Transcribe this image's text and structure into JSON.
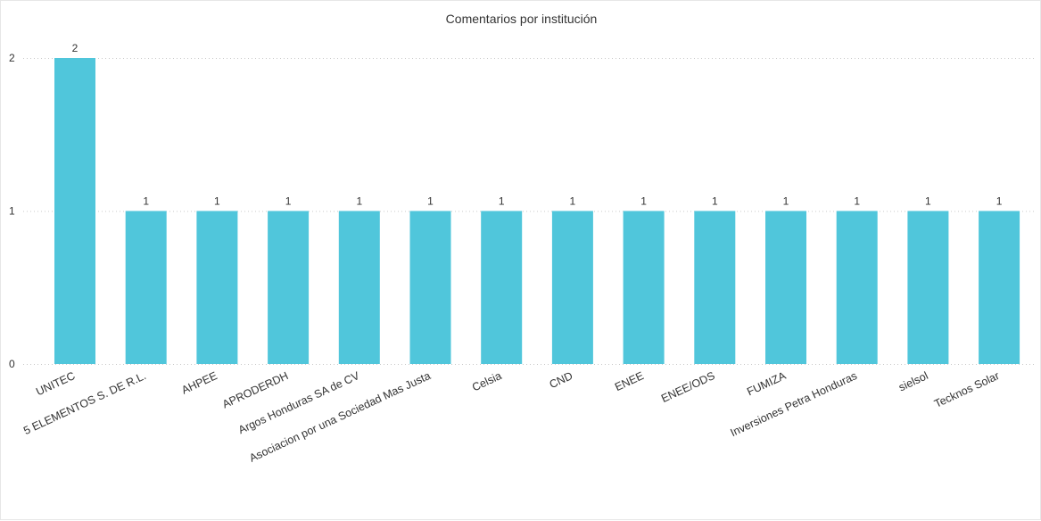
{
  "chart_data": {
    "type": "bar",
    "title": "Comentarios por institución",
    "categories": [
      "UNITEC",
      "5 ELEMENTOS S. DE R.L.",
      "AHPEE",
      "APRODERDH",
      "Argos Honduras SA de CV",
      "Asociacion por una Sociedad Mas Justa",
      "Celsia",
      "CND",
      "ENEE",
      "ENEE/ODS",
      "FUMIZA",
      "Inversiones Petra Honduras",
      "sielsol",
      "Tecknos Solar"
    ],
    "values": [
      2,
      1,
      1,
      1,
      1,
      1,
      1,
      1,
      1,
      1,
      1,
      1,
      1,
      1
    ],
    "data_labels": [
      "2",
      "1",
      "1",
      "1",
      "1",
      "1",
      "1",
      "1",
      "1",
      "1",
      "1",
      "1",
      "1",
      "1"
    ],
    "yticks": [
      0,
      1,
      2
    ],
    "ylim": [
      0,
      2
    ],
    "xlabel": "",
    "ylabel": "",
    "grid": "horizontal-dotted",
    "legend": "none",
    "bar_color": "#50c6db",
    "grid_color": "#c8c8c8",
    "text_color": "#333333"
  }
}
